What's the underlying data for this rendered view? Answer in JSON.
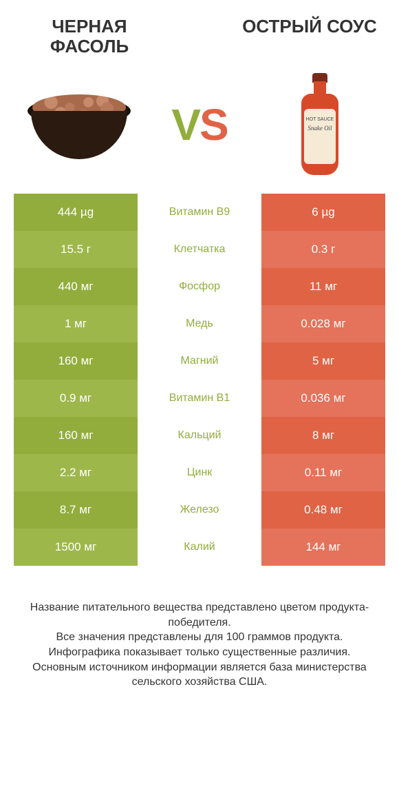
{
  "left_title": "ЧЕРНАЯ ФАСОЛЬ",
  "right_title": "ОСТРЫЙ СОУС",
  "bottle_label_top": "HOT SAUCE",
  "bottle_label_name": "Snake Oil",
  "vs_v": "V",
  "vs_s": "S",
  "colors": {
    "left": "#92ad3c",
    "right": "#e06345",
    "left_alt": "#9eb74a",
    "right_alt": "#e5725a",
    "mid_text_left": "#92ad3c",
    "mid_text_right": "#e06345",
    "row_border": "#ffffff"
  },
  "rows": [
    {
      "left": "444 µg",
      "label": "Витамин B9",
      "right": "6 µg",
      "winner": "left"
    },
    {
      "left": "15.5 г",
      "label": "Клетчатка",
      "right": "0.3 г",
      "winner": "left"
    },
    {
      "left": "440 мг",
      "label": "Фосфор",
      "right": "11 мг",
      "winner": "left"
    },
    {
      "left": "1 мг",
      "label": "Медь",
      "right": "0.028 мг",
      "winner": "left"
    },
    {
      "left": "160 мг",
      "label": "Магний",
      "right": "5 мг",
      "winner": "left"
    },
    {
      "left": "0.9 мг",
      "label": "Витамин B1",
      "right": "0.036 мг",
      "winner": "left"
    },
    {
      "left": "160 мг",
      "label": "Кальций",
      "right": "8 мг",
      "winner": "left"
    },
    {
      "left": "2.2 мг",
      "label": "Цинк",
      "right": "0.11 мг",
      "winner": "left"
    },
    {
      "left": "8.7 мг",
      "label": "Железо",
      "right": "0.48 мг",
      "winner": "left"
    },
    {
      "left": "1500 мг",
      "label": "Калий",
      "right": "144 мг",
      "winner": "left"
    }
  ],
  "footer_lines": [
    "Название питательного вещества представлено цветом продукта-победителя.",
    "Все значения представлены для 100 граммов продукта.",
    "Инфографика показывает только существенные различия.",
    "Основным источником информации является база министерства сельского хозяйства США."
  ]
}
